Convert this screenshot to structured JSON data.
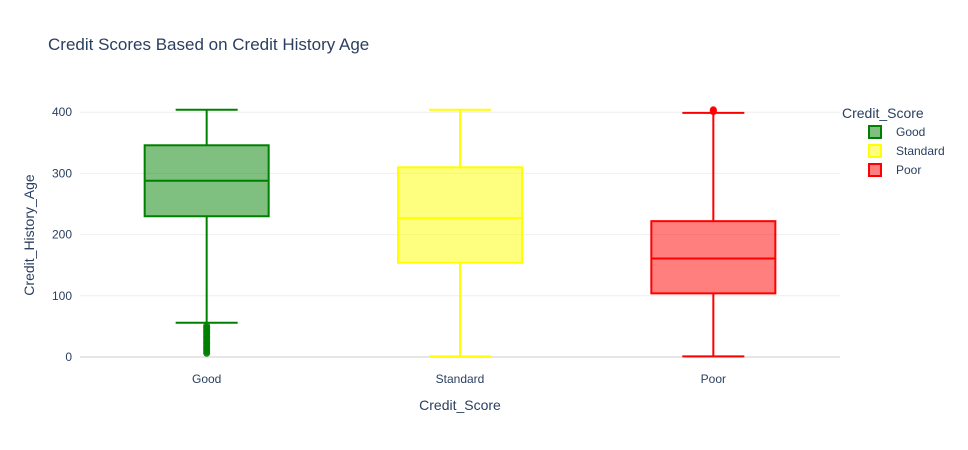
{
  "chart_data": {
    "type": "box",
    "title": "Credit Scores Based on Credit History Age",
    "xlabel": "Credit_Score",
    "ylabel": "Credit_History_Age",
    "ylim": [
      0,
      420
    ],
    "yticks": [
      0,
      100,
      200,
      300,
      400
    ],
    "grid": true,
    "legend_title": "Credit_Score",
    "legend_position": "right",
    "categories": [
      "Good",
      "Standard",
      "Poor"
    ],
    "series": [
      {
        "name": "Good",
        "color": "#008000",
        "fill": "rgba(0,128,0,0.5)",
        "lower_fence": 56,
        "q1": 230,
        "median": 288,
        "q3": 346,
        "upper_fence": 404,
        "outliers": [
          6,
          9,
          12,
          15,
          18,
          21,
          24,
          27,
          30,
          33,
          36,
          39,
          42,
          45,
          48,
          51
        ]
      },
      {
        "name": "Standard",
        "color": "#ffff00",
        "fill": "rgba(255,255,0,0.5)",
        "lower_fence": 1,
        "q1": 154,
        "median": 227,
        "q3": 310,
        "upper_fence": 404,
        "outliers": []
      },
      {
        "name": "Poor",
        "color": "#ff0000",
        "fill": "rgba(255,0,0,0.5)",
        "lower_fence": 1,
        "q1": 104,
        "median": 161,
        "q3": 222,
        "upper_fence": 399,
        "outliers": [
          401,
          403,
          404
        ]
      }
    ]
  }
}
